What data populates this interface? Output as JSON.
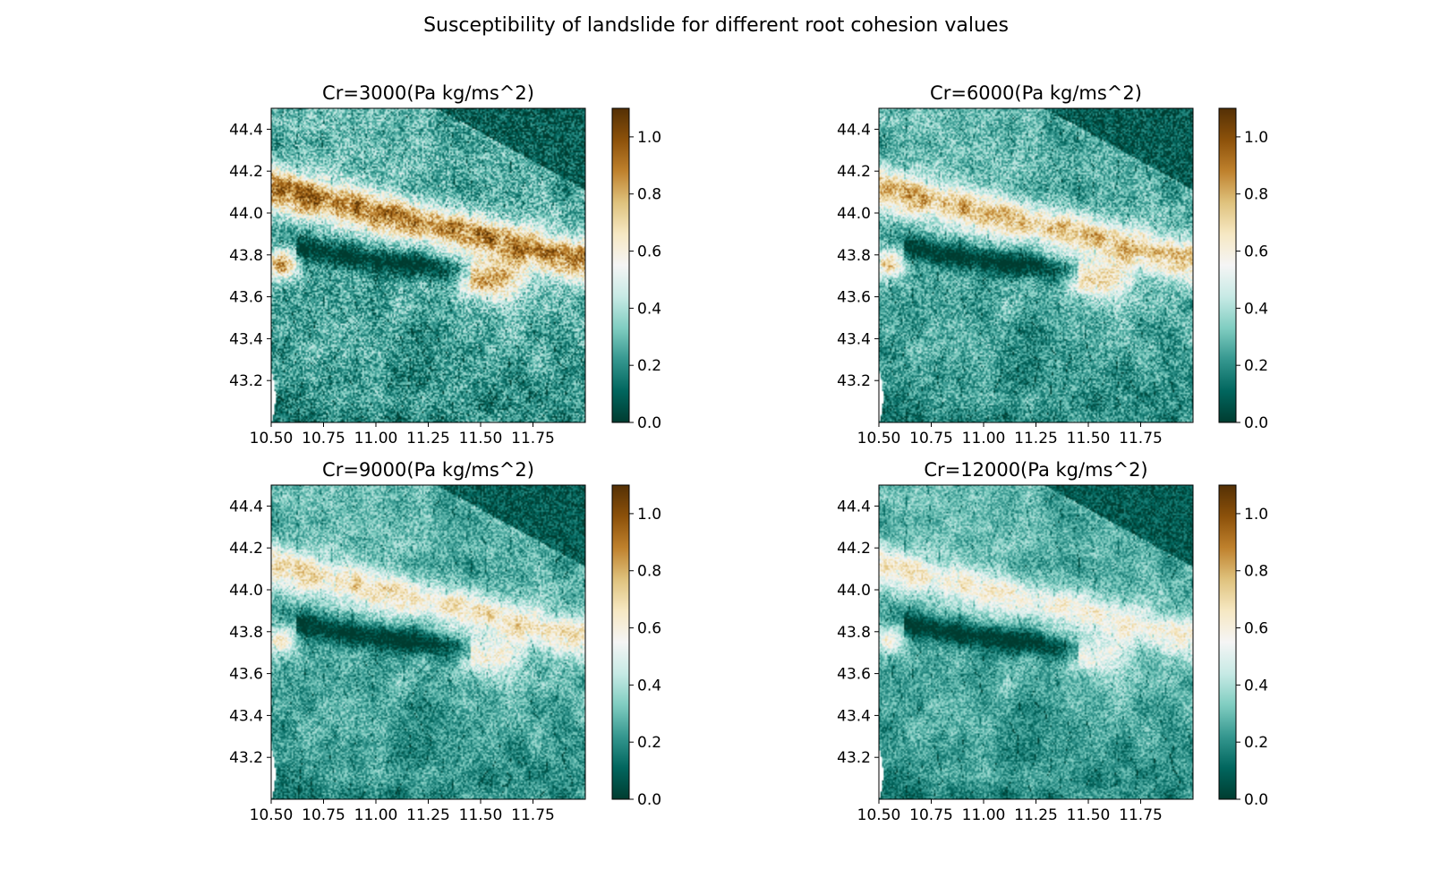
{
  "figure": {
    "title": "Susceptibility of landslide for different root cohesion values"
  },
  "colormap": {
    "name": "BrBG_r",
    "stops": [
      "#003c30",
      "#01665e",
      "#35978f",
      "#80cdc1",
      "#c7eae5",
      "#f5f5f5",
      "#f6e8c3",
      "#dfc27d",
      "#bf812d",
      "#8c510a",
      "#543005"
    ]
  },
  "chart_data": [
    {
      "type": "heatmap",
      "title": "Cr=3000(Pa kg/ms^2)",
      "xlim": [
        10.5,
        12.0
      ],
      "ylim": [
        43.0,
        44.5
      ],
      "xticks": [
        10.5,
        10.75,
        11.0,
        11.25,
        11.5,
        11.75
      ],
      "xtick_labels": [
        "10.50",
        "10.75",
        "11.00",
        "11.25",
        "11.50",
        "11.75"
      ],
      "yticks": [
        43.2,
        43.4,
        43.6,
        43.8,
        44.0,
        44.2,
        44.4
      ],
      "ytick_labels": [
        "43.2",
        "43.4",
        "43.6",
        "43.8",
        "44.0",
        "44.2",
        "44.4"
      ],
      "colorbar": {
        "vmin": 0.0,
        "vmax": 1.1,
        "ticks": [
          0.0,
          0.2,
          0.4,
          0.6,
          0.8,
          1.0
        ],
        "tick_labels": [
          "0.0",
          "0.2",
          "0.4",
          "0.6",
          "0.8",
          "1.0"
        ]
      },
      "intensity": 1.0
    },
    {
      "type": "heatmap",
      "title": "Cr=6000(Pa kg/ms^2)",
      "xlim": [
        10.5,
        12.0
      ],
      "ylim": [
        43.0,
        44.5
      ],
      "xticks": [
        10.5,
        10.75,
        11.0,
        11.25,
        11.5,
        11.75
      ],
      "xtick_labels": [
        "10.50",
        "10.75",
        "11.00",
        "11.25",
        "11.50",
        "11.75"
      ],
      "yticks": [
        43.2,
        43.4,
        43.6,
        43.8,
        44.0,
        44.2,
        44.4
      ],
      "ytick_labels": [
        "43.2",
        "43.4",
        "43.6",
        "43.8",
        "44.0",
        "44.2",
        "44.4"
      ],
      "colorbar": {
        "vmin": 0.0,
        "vmax": 1.1,
        "ticks": [
          0.0,
          0.2,
          0.4,
          0.6,
          0.8,
          1.0
        ],
        "tick_labels": [
          "0.0",
          "0.2",
          "0.4",
          "0.6",
          "0.8",
          "1.0"
        ]
      },
      "intensity": 0.78
    },
    {
      "type": "heatmap",
      "title": "Cr=9000(Pa kg/ms^2)",
      "xlim": [
        10.5,
        12.0
      ],
      "ylim": [
        43.0,
        44.5
      ],
      "xticks": [
        10.5,
        10.75,
        11.0,
        11.25,
        11.5,
        11.75
      ],
      "xtick_labels": [
        "10.50",
        "10.75",
        "11.00",
        "11.25",
        "11.50",
        "11.75"
      ],
      "yticks": [
        43.2,
        43.4,
        43.6,
        43.8,
        44.0,
        44.2,
        44.4
      ],
      "ytick_labels": [
        "43.2",
        "43.4",
        "43.6",
        "43.8",
        "44.0",
        "44.2",
        "44.4"
      ],
      "colorbar": {
        "vmin": 0.0,
        "vmax": 1.1,
        "ticks": [
          0.0,
          0.2,
          0.4,
          0.6,
          0.8,
          1.0
        ],
        "tick_labels": [
          "0.0",
          "0.2",
          "0.4",
          "0.6",
          "0.8",
          "1.0"
        ]
      },
      "intensity": 0.62
    },
    {
      "type": "heatmap",
      "title": "Cr=12000(Pa kg/ms^2)",
      "xlim": [
        10.5,
        12.0
      ],
      "ylim": [
        43.0,
        44.5
      ],
      "xticks": [
        10.5,
        10.75,
        11.0,
        11.25,
        11.5,
        11.75
      ],
      "xtick_labels": [
        "10.50",
        "10.75",
        "11.00",
        "11.25",
        "11.50",
        "11.75"
      ],
      "yticks": [
        43.2,
        43.4,
        43.6,
        43.8,
        44.0,
        44.2,
        44.4
      ],
      "ytick_labels": [
        "43.2",
        "43.4",
        "43.6",
        "43.8",
        "44.0",
        "44.2",
        "44.4"
      ],
      "colorbar": {
        "vmin": 0.0,
        "vmax": 1.1,
        "ticks": [
          0.0,
          0.2,
          0.4,
          0.6,
          0.8,
          1.0
        ],
        "tick_labels": [
          "0.0",
          "0.2",
          "0.4",
          "0.6",
          "0.8",
          "1.0"
        ]
      },
      "intensity": 0.52
    }
  ]
}
